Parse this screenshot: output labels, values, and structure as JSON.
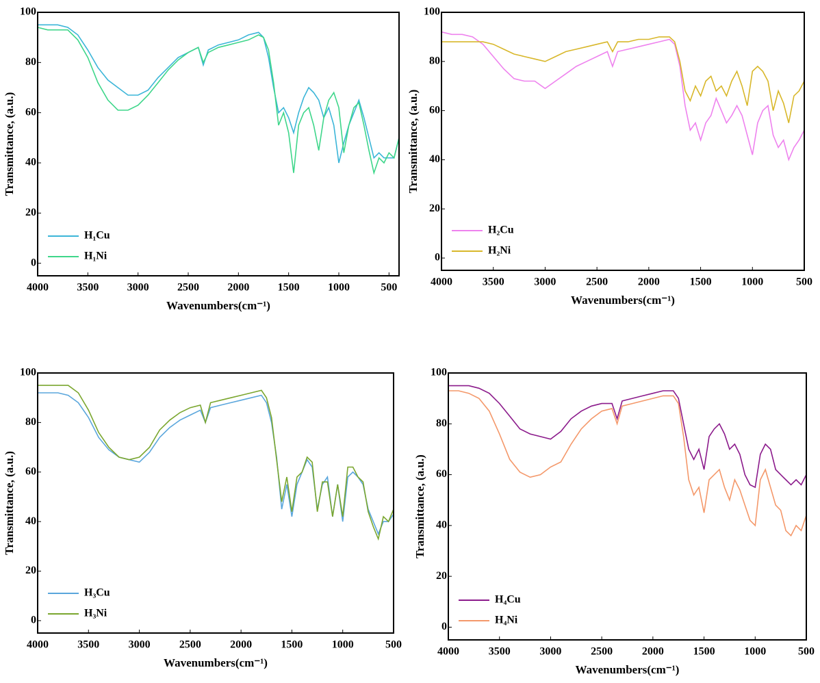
{
  "chart_data": [
    {
      "type": "line",
      "x_label": "Wavenumbers(cm⁻¹)",
      "y_label": "Transmittance, (a.u.)",
      "x": [
        4000,
        3900,
        3800,
        3700,
        3600,
        3500,
        3400,
        3300,
        3200,
        3100,
        3000,
        2900,
        2800,
        2700,
        2600,
        2500,
        2400,
        2350,
        2300,
        2200,
        2100,
        2000,
        1900,
        1800,
        1750,
        1700,
        1650,
        1600,
        1550,
        1500,
        1450,
        1400,
        1350,
        1300,
        1250,
        1200,
        1150,
        1100,
        1050,
        1000,
        950,
        900,
        850,
        800,
        750,
        700,
        650,
        600,
        550,
        500,
        450,
        400
      ],
      "xlim": [
        4000,
        400
      ],
      "xticks": [
        4000,
        3500,
        3000,
        2500,
        2000,
        1500,
        1000,
        500
      ],
      "ylim": [
        -5,
        100
      ],
      "yticks": [
        0,
        20,
        40,
        60,
        80,
        100
      ],
      "series": [
        {
          "name": "H₁Cu",
          "color": "#3bb5d8",
          "values": [
            95,
            95,
            95,
            94,
            91,
            85,
            78,
            73,
            70,
            67,
            67,
            69,
            74,
            78,
            82,
            84,
            86,
            79,
            85,
            87,
            88,
            89,
            91,
            92,
            90,
            82,
            70,
            60,
            62,
            58,
            52,
            60,
            66,
            70,
            68,
            65,
            58,
            62,
            55,
            40,
            48,
            55,
            60,
            65,
            58,
            50,
            42,
            44,
            42,
            42,
            42,
            50
          ]
        },
        {
          "name": "H₁Ni",
          "color": "#3ed68a",
          "values": [
            94,
            93,
            93,
            93,
            89,
            82,
            72,
            65,
            61,
            61,
            63,
            67,
            72,
            77,
            81,
            84,
            86,
            80,
            84,
            86,
            87,
            88,
            89,
            91,
            90,
            85,
            72,
            55,
            60,
            52,
            36,
            55,
            60,
            62,
            55,
            45,
            58,
            65,
            68,
            62,
            44,
            55,
            62,
            64,
            55,
            45,
            36,
            42,
            40,
            44,
            42,
            50
          ]
        }
      ]
    },
    {
      "type": "line",
      "x_label": "Wavenumbers(cm⁻¹)",
      "y_label": "Transmittance, (a.u.)",
      "x": [
        4000,
        3900,
        3800,
        3700,
        3600,
        3500,
        3400,
        3300,
        3200,
        3100,
        3000,
        2900,
        2800,
        2700,
        2600,
        2500,
        2400,
        2350,
        2300,
        2200,
        2100,
        2000,
        1900,
        1800,
        1750,
        1700,
        1650,
        1600,
        1550,
        1500,
        1450,
        1400,
        1350,
        1300,
        1250,
        1200,
        1150,
        1100,
        1050,
        1000,
        950,
        900,
        850,
        800,
        750,
        700,
        650,
        600,
        550,
        500
      ],
      "xlim": [
        4000,
        500
      ],
      "xticks": [
        4000,
        3500,
        3000,
        2500,
        2000,
        1500,
        1000,
        500
      ],
      "ylim": [
        -5,
        100
      ],
      "yticks": [
        0,
        20,
        40,
        60,
        80,
        100
      ],
      "series": [
        {
          "name": "H₂Cu",
          "color": "#ee82ee",
          "values": [
            92,
            91,
            91,
            90,
            87,
            82,
            77,
            73,
            72,
            72,
            69,
            72,
            75,
            78,
            80,
            82,
            84,
            78,
            84,
            85,
            86,
            87,
            88,
            89,
            87,
            78,
            62,
            52,
            55,
            48,
            55,
            58,
            65,
            60,
            55,
            58,
            62,
            58,
            50,
            42,
            55,
            60,
            62,
            50,
            45,
            48,
            40,
            45,
            48,
            52
          ]
        },
        {
          "name": "H₂Ni",
          "color": "#d8b72a",
          "values": [
            88,
            88,
            88,
            88,
            88,
            87,
            85,
            83,
            82,
            81,
            80,
            82,
            84,
            85,
            86,
            87,
            88,
            84,
            88,
            88,
            89,
            89,
            90,
            90,
            88,
            80,
            68,
            64,
            70,
            66,
            72,
            74,
            68,
            70,
            66,
            72,
            76,
            70,
            62,
            76,
            78,
            76,
            72,
            60,
            68,
            63,
            55,
            66,
            68,
            72
          ]
        }
      ]
    },
    {
      "type": "line",
      "x_label": "Wavenumbers(cm⁻¹)",
      "y_label": "Transmittance, (a.u.)",
      "x": [
        4000,
        3900,
        3800,
        3700,
        3600,
        3500,
        3400,
        3300,
        3200,
        3100,
        3000,
        2900,
        2800,
        2700,
        2600,
        2500,
        2400,
        2350,
        2300,
        2200,
        2100,
        2000,
        1900,
        1800,
        1750,
        1700,
        1650,
        1600,
        1550,
        1500,
        1450,
        1400,
        1350,
        1300,
        1250,
        1200,
        1150,
        1100,
        1050,
        1000,
        950,
        900,
        850,
        800,
        750,
        700,
        650,
        600,
        550,
        500
      ],
      "xlim": [
        4000,
        500
      ],
      "xticks": [
        4000,
        3500,
        3000,
        2500,
        2000,
        1500,
        1000,
        500
      ],
      "ylim": [
        -5,
        100
      ],
      "yticks": [
        0,
        20,
        40,
        60,
        80,
        100
      ],
      "series": [
        {
          "name": "H₃Cu",
          "color": "#5aa6dc",
          "values": [
            92,
            92,
            92,
            91,
            88,
            82,
            74,
            69,
            66,
            65,
            64,
            68,
            74,
            78,
            81,
            83,
            85,
            80,
            86,
            87,
            88,
            89,
            90,
            91,
            88,
            80,
            66,
            45,
            55,
            42,
            55,
            60,
            65,
            62,
            45,
            55,
            58,
            42,
            55,
            40,
            58,
            60,
            58,
            55,
            45,
            40,
            35,
            40,
            40,
            43
          ]
        },
        {
          "name": "H₃Ni",
          "color": "#7aa62e",
          "values": [
            95,
            95,
            95,
            95,
            92,
            85,
            76,
            70,
            66,
            65,
            66,
            70,
            77,
            81,
            84,
            86,
            87,
            80,
            88,
            89,
            90,
            91,
            92,
            93,
            90,
            82,
            65,
            48,
            58,
            44,
            58,
            60,
            66,
            64,
            44,
            56,
            56,
            42,
            55,
            42,
            62,
            62,
            58,
            56,
            44,
            38,
            33,
            42,
            40,
            45
          ]
        }
      ]
    },
    {
      "type": "line",
      "x_label": "Wavenumbers(cm⁻¹)",
      "y_label": "Transmittance, (a.u.)",
      "x": [
        4000,
        3900,
        3800,
        3700,
        3600,
        3500,
        3400,
        3300,
        3200,
        3100,
        3000,
        2900,
        2800,
        2700,
        2600,
        2500,
        2400,
        2350,
        2300,
        2200,
        2100,
        2000,
        1900,
        1800,
        1750,
        1700,
        1650,
        1600,
        1550,
        1500,
        1450,
        1400,
        1350,
        1300,
        1250,
        1200,
        1150,
        1100,
        1050,
        1000,
        950,
        900,
        850,
        800,
        750,
        700,
        650,
        600,
        550,
        500
      ],
      "xlim": [
        4000,
        500
      ],
      "xticks": [
        4000,
        3500,
        3000,
        2500,
        2000,
        1500,
        1000,
        500
      ],
      "ylim": [
        -5,
        100
      ],
      "yticks": [
        0,
        20,
        40,
        60,
        80,
        100
      ],
      "series": [
        {
          "name": "H₄Cu",
          "color": "#8b1a8b",
          "values": [
            95,
            95,
            95,
            94,
            92,
            88,
            83,
            78,
            76,
            75,
            74,
            77,
            82,
            85,
            87,
            88,
            88,
            82,
            89,
            90,
            91,
            92,
            93,
            93,
            90,
            80,
            70,
            66,
            70,
            62,
            75,
            78,
            80,
            76,
            70,
            72,
            68,
            60,
            56,
            55,
            68,
            72,
            70,
            62,
            60,
            58,
            56,
            58,
            56,
            60
          ]
        },
        {
          "name": "H₄Ni",
          "color": "#f4986a",
          "values": [
            93,
            93,
            92,
            90,
            85,
            76,
            66,
            61,
            59,
            60,
            63,
            65,
            72,
            78,
            82,
            85,
            86,
            80,
            87,
            88,
            89,
            90,
            91,
            91,
            88,
            75,
            58,
            52,
            55,
            45,
            58,
            60,
            62,
            55,
            50,
            58,
            54,
            48,
            42,
            40,
            58,
            62,
            55,
            48,
            46,
            38,
            36,
            40,
            38,
            44
          ]
        }
      ]
    }
  ]
}
